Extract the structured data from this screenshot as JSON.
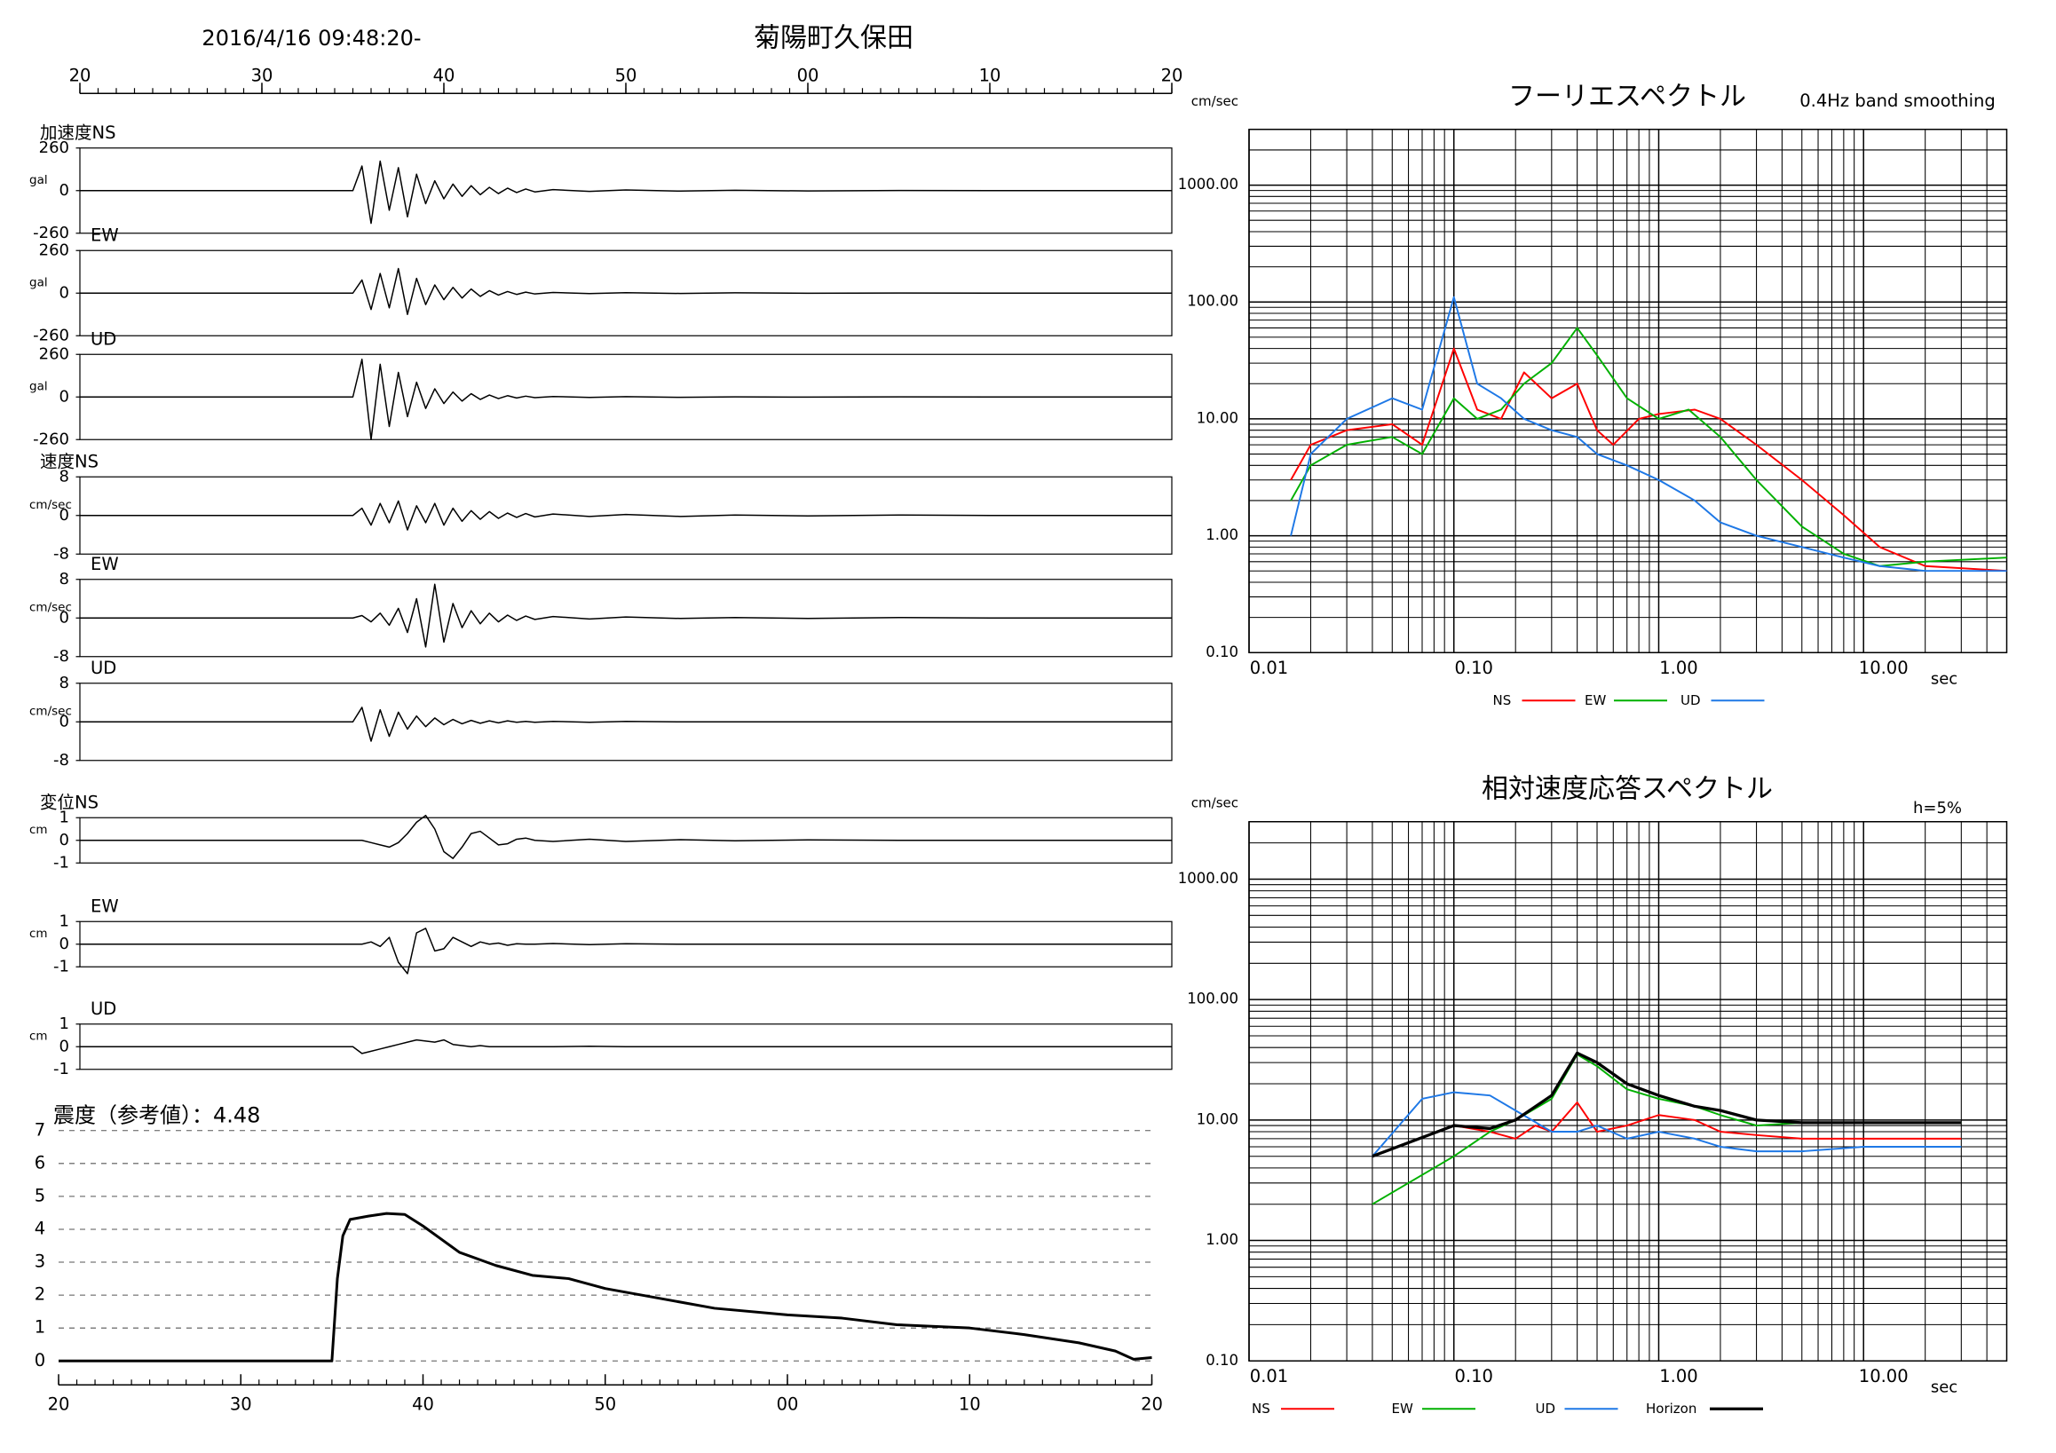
{
  "chart_data": [
    {
      "type": "waveform",
      "title": "菊陽町久保田",
      "subtitle": "2016/4/16 09:48:20-",
      "x": [
        0,
        15,
        15.5,
        16,
        16.5,
        17,
        17.5,
        18,
        18.5,
        19,
        19.5,
        20,
        20.5,
        21,
        21.5,
        22,
        22.5,
        23,
        23.5,
        24,
        24.5,
        25,
        26,
        28,
        30,
        33,
        36,
        40,
        45,
        50,
        60
      ],
      "xlim": [
        0,
        60
      ],
      "xticks": [
        {
          "value": 0,
          "label": "20"
        },
        {
          "value": 10,
          "label": "30"
        },
        {
          "value": 20,
          "label": "40"
        },
        {
          "value": 30,
          "label": "50"
        },
        {
          "value": 40,
          "label": "00"
        },
        {
          "value": 50,
          "label": "10"
        },
        {
          "value": 60,
          "label": "20"
        }
      ],
      "panels": [
        {
          "label": "加速度NS",
          "unit": "gal",
          "ylim": [
            -260,
            260
          ],
          "yticks": [
            -260,
            0,
            260
          ],
          "color": "#000000",
          "values": [
            0,
            0,
            150,
            -200,
            180,
            -120,
            140,
            -160,
            100,
            -80,
            60,
            -50,
            40,
            -35,
            30,
            -25,
            20,
            -18,
            15,
            -12,
            10,
            -8,
            6,
            -5,
            4,
            -3,
            2,
            -2,
            1,
            0,
            0
          ]
        },
        {
          "label": "EW",
          "unit": "gal",
          "ylim": [
            -260,
            260
          ],
          "yticks": [
            -260,
            0,
            260
          ],
          "color": "#000000",
          "values": [
            0,
            0,
            80,
            -100,
            120,
            -90,
            150,
            -130,
            90,
            -70,
            50,
            -40,
            35,
            -30,
            25,
            -20,
            15,
            -12,
            10,
            -8,
            6,
            -5,
            4,
            -3,
            3,
            -2,
            2,
            -1,
            1,
            0,
            0
          ]
        },
        {
          "label": "UD",
          "unit": "gal",
          "ylim": [
            -260,
            260
          ],
          "yticks": [
            -260,
            0,
            260
          ],
          "color": "#000000",
          "values": [
            0,
            0,
            230,
            -260,
            200,
            -180,
            150,
            -120,
            90,
            -70,
            50,
            -40,
            30,
            -25,
            20,
            -15,
            12,
            -10,
            8,
            -6,
            5,
            -4,
            3,
            -3,
            2,
            -2,
            1,
            -1,
            1,
            0,
            0
          ]
        },
        {
          "label": "速度NS",
          "unit": "cm/sec",
          "ylim": [
            -8,
            8
          ],
          "yticks": [
            -8,
            0,
            8
          ],
          "color": "#000000",
          "values": [
            0,
            0,
            1.5,
            -2,
            2.5,
            -1.5,
            3,
            -3,
            2,
            -1.5,
            2.5,
            -2,
            1.5,
            -1.2,
            1,
            -0.8,
            0.8,
            -0.6,
            0.5,
            -0.4,
            0.4,
            -0.3,
            0.3,
            -0.2,
            0.2,
            -0.2,
            0.1,
            -0.1,
            0.1,
            0,
            0
          ]
        },
        {
          "label": "EW",
          "unit": "cm/sec",
          "ylim": [
            -8,
            8
          ],
          "yticks": [
            -8,
            0,
            8
          ],
          "color": "#000000",
          "values": [
            0,
            0,
            0.5,
            -0.8,
            1,
            -1.5,
            2,
            -3,
            4,
            -6,
            7,
            -5,
            3,
            -2,
            1.5,
            -1.2,
            1,
            -0.8,
            0.6,
            -0.5,
            0.4,
            -0.3,
            0.3,
            -0.2,
            0.2,
            -0.1,
            0.1,
            -0.1,
            0.1,
            0,
            0
          ]
        },
        {
          "label": "UD",
          "unit": "cm/sec",
          "ylim": [
            -8,
            8
          ],
          "yticks": [
            -8,
            0,
            8
          ],
          "color": "#000000",
          "values": [
            0,
            0,
            3,
            -4,
            2.5,
            -3,
            2,
            -1.5,
            1.2,
            -1,
            0.8,
            -0.6,
            0.5,
            -0.4,
            0.3,
            -0.3,
            0.2,
            -0.2,
            0.2,
            -0.1,
            0.1,
            -0.1,
            0.1,
            -0.1,
            0.1,
            0,
            0,
            0,
            0,
            0,
            0
          ]
        },
        {
          "label": "変位NS",
          "unit": "cm",
          "ylim": [
            -1,
            1
          ],
          "yticks": [
            -1,
            0,
            1
          ],
          "color": "#000000",
          "values": [
            0,
            0,
            0,
            -0.1,
            -0.2,
            -0.3,
            -0.1,
            0.3,
            0.8,
            1.1,
            0.5,
            -0.5,
            -0.8,
            -0.3,
            0.3,
            0.4,
            0.1,
            -0.2,
            -0.15,
            0.05,
            0.1,
            0,
            -0.05,
            0.05,
            -0.05,
            0.03,
            -0.02,
            0.02,
            0,
            0,
            0
          ]
        },
        {
          "label": "EW",
          "unit": "cm",
          "ylim": [
            -1,
            1
          ],
          "yticks": [
            -1,
            0,
            1
          ],
          "color": "#000000",
          "values": [
            0,
            0,
            0,
            0.1,
            -0.1,
            0.3,
            -0.8,
            -1.3,
            0.5,
            0.7,
            -0.3,
            -0.2,
            0.3,
            0.1,
            -0.1,
            0.1,
            0,
            0.05,
            -0.05,
            0.02,
            0,
            0,
            0.03,
            -0.02,
            0.02,
            0,
            0,
            0,
            0,
            0,
            0
          ]
        },
        {
          "label": "UD",
          "unit": "cm",
          "ylim": [
            -1,
            1
          ],
          "yticks": [
            -1,
            0,
            1
          ],
          "color": "#000000",
          "values": [
            0,
            0,
            -0.3,
            -0.2,
            -0.1,
            0,
            0.1,
            0.2,
            0.3,
            0.25,
            0.2,
            0.3,
            0.1,
            0.05,
            0,
            0.05,
            0,
            0,
            0,
            0,
            0,
            0,
            0,
            0.02,
            0,
            0,
            0,
            0,
            0,
            0,
            0
          ]
        }
      ]
    },
    {
      "type": "line",
      "title": "震度（参考値）：4.48",
      "color": "#000000",
      "x": [
        0,
        15,
        15.3,
        15.6,
        16,
        17,
        18,
        19,
        20,
        22,
        24,
        26,
        28,
        30,
        33,
        36,
        40,
        43,
        46,
        50,
        53,
        56,
        58,
        59,
        60
      ],
      "values": [
        0,
        0,
        2.5,
        3.8,
        4.3,
        4.4,
        4.48,
        4.45,
        4.1,
        3.3,
        2.9,
        2.6,
        2.5,
        2.2,
        1.9,
        1.6,
        1.4,
        1.3,
        1.1,
        1.0,
        0.8,
        0.55,
        0.3,
        0.05,
        0.1
      ],
      "xlim": [
        0,
        60
      ],
      "xticks": [
        {
          "value": 0,
          "label": "20"
        },
        {
          "value": 10,
          "label": "30"
        },
        {
          "value": 20,
          "label": "40"
        },
        {
          "value": 30,
          "label": "50"
        },
        {
          "value": 40,
          "label": "00"
        },
        {
          "value": 50,
          "label": "10"
        },
        {
          "value": 60,
          "label": "20"
        }
      ],
      "ylim": [
        0,
        7
      ],
      "yticks": [
        0,
        1,
        2,
        3,
        4,
        5,
        6,
        7
      ],
      "grid": "dashed"
    },
    {
      "type": "loglog",
      "title": "フーリエスペクトル",
      "subtitle": "0.4Hz band smoothing",
      "y_label": "cm/sec",
      "x_label": "sec",
      "xlim": [
        0.01,
        50
      ],
      "ylim": [
        0.1,
        3000
      ],
      "log_scale": true,
      "grid": true,
      "minor_grid": true,
      "xticks": [
        {
          "value": 0.01,
          "label": "0.01"
        },
        {
          "value": 0.1,
          "label": "0.10"
        },
        {
          "value": 1,
          "label": "1.00"
        },
        {
          "value": 10,
          "label": "10.00"
        }
      ],
      "yticks": [
        {
          "value": 0.1,
          "label": "0.10"
        },
        {
          "value": 1,
          "label": "1.00"
        },
        {
          "value": 10,
          "label": "10.00"
        },
        {
          "value": 100,
          "label": "100.00"
        },
        {
          "value": 1000,
          "label": "1000.00"
        }
      ],
      "series": [
        {
          "name": "NS",
          "color": "#ff0000",
          "x": [
            0.016,
            0.02,
            0.03,
            0.05,
            0.07,
            0.1,
            0.13,
            0.17,
            0.22,
            0.3,
            0.4,
            0.5,
            0.6,
            0.8,
            1.0,
            1.5,
            2,
            3,
            5,
            8,
            12,
            20,
            50
          ],
          "values": [
            3,
            6,
            8,
            9,
            6,
            40,
            12,
            10,
            25,
            15,
            20,
            8,
            6,
            10,
            11,
            12,
            10,
            6,
            3,
            1.5,
            0.8,
            0.55,
            0.5
          ]
        },
        {
          "name": "EW",
          "color": "#00b000",
          "x": [
            0.016,
            0.02,
            0.03,
            0.05,
            0.07,
            0.1,
            0.13,
            0.17,
            0.22,
            0.3,
            0.4,
            0.5,
            0.7,
            1.0,
            1.4,
            2,
            3,
            5,
            8,
            12,
            20,
            50
          ],
          "values": [
            2,
            4,
            6,
            7,
            5,
            15,
            10,
            12,
            20,
            30,
            60,
            35,
            15,
            10,
            12,
            7,
            3,
            1.2,
            0.7,
            0.55,
            0.6,
            0.65
          ]
        },
        {
          "name": "UD",
          "color": "#1e78e6",
          "x": [
            0.016,
            0.02,
            0.03,
            0.05,
            0.07,
            0.1,
            0.13,
            0.17,
            0.22,
            0.3,
            0.4,
            0.5,
            0.7,
            1.0,
            1.5,
            2,
            3,
            5,
            8,
            12,
            20,
            50
          ],
          "values": [
            1,
            5,
            10,
            15,
            12,
            110,
            20,
            15,
            10,
            8,
            7,
            5,
            4,
            3,
            2,
            1.3,
            1.0,
            0.8,
            0.65,
            0.55,
            0.5,
            0.5
          ]
        }
      ]
    },
    {
      "type": "loglog",
      "title": "相対速度応答スペクトル",
      "subtitle": "h=5%",
      "y_label": "cm/sec",
      "x_label": "sec",
      "xlim": [
        0.01,
        50
      ],
      "ylim": [
        0.1,
        3000
      ],
      "log_scale": true,
      "grid": true,
      "minor_grid": true,
      "xticks": [
        {
          "value": 0.01,
          "label": "0.01"
        },
        {
          "value": 0.1,
          "label": "0.10"
        },
        {
          "value": 1,
          "label": "1.00"
        },
        {
          "value": 10,
          "label": "10.00"
        }
      ],
      "yticks": [
        {
          "value": 0.1,
          "label": "0.10"
        },
        {
          "value": 1,
          "label": "1.00"
        },
        {
          "value": 10,
          "label": "10.00"
        },
        {
          "value": 100,
          "label": "100.00"
        },
        {
          "value": 1000,
          "label": "1000.00"
        }
      ],
      "series": [
        {
          "name": "NS",
          "color": "#ff0000",
          "x": [
            0.04,
            0.1,
            0.15,
            0.2,
            0.25,
            0.3,
            0.4,
            0.5,
            0.7,
            1,
            1.5,
            2,
            3,
            5,
            10,
            30
          ],
          "values": [
            5,
            9,
            8,
            7,
            9,
            8,
            14,
            8,
            9,
            11,
            10,
            8,
            7.5,
            7,
            7,
            7
          ]
        },
        {
          "name": "EW",
          "color": "#00b000",
          "x": [
            0.04,
            0.1,
            0.15,
            0.2,
            0.3,
            0.4,
            0.5,
            0.7,
            1,
            1.5,
            2,
            3,
            5,
            10,
            30
          ],
          "values": [
            2,
            5,
            8,
            10,
            15,
            35,
            28,
            18,
            15,
            13,
            11,
            9,
            9.5,
            9.5,
            9.5
          ]
        },
        {
          "name": "UD",
          "color": "#1e78e6",
          "x": [
            0.04,
            0.07,
            0.1,
            0.15,
            0.2,
            0.3,
            0.4,
            0.5,
            0.7,
            1,
            1.5,
            2,
            3,
            5,
            10,
            30
          ],
          "values": [
            5,
            15,
            17,
            16,
            12,
            8,
            8,
            9,
            7,
            8,
            7,
            6,
            5.5,
            5.5,
            6,
            6
          ]
        },
        {
          "name": "Horizon",
          "color": "#000000",
          "x": [
            0.04,
            0.1,
            0.15,
            0.2,
            0.3,
            0.4,
            0.5,
            0.7,
            1,
            1.5,
            2,
            3,
            5,
            10,
            30
          ],
          "values": [
            5,
            9,
            8.5,
            10,
            16,
            36,
            30,
            20,
            16,
            13,
            12,
            10,
            9.5,
            9.5,
            9.5
          ]
        }
      ]
    }
  ]
}
